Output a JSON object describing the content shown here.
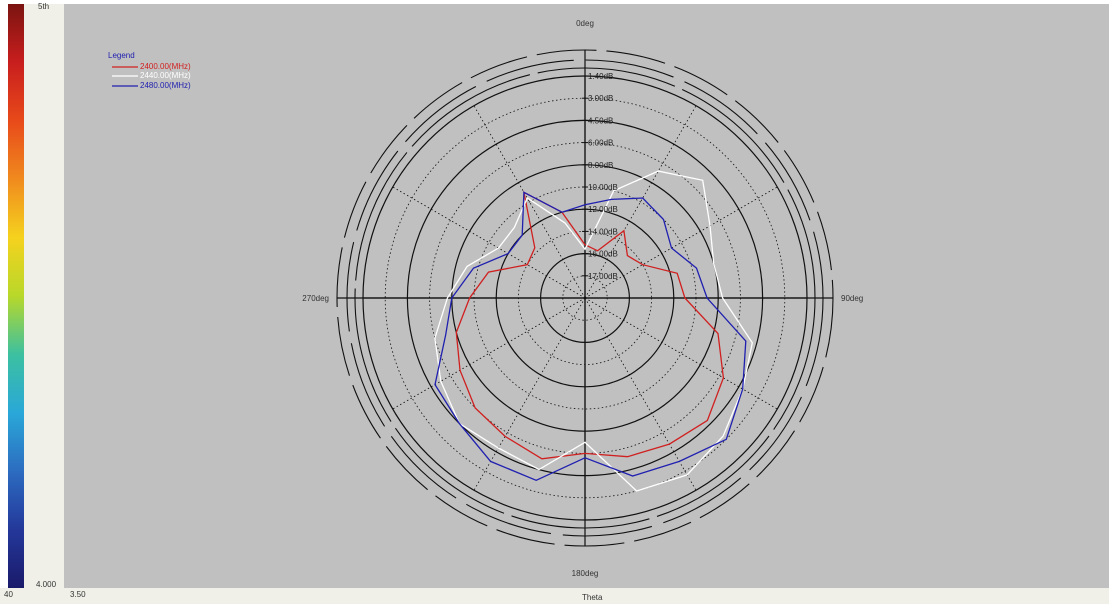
{
  "colorbar": {
    "top_label": "5th",
    "bottom_label": "4.000",
    "bottom_left_label": "40"
  },
  "bottom_bar": {
    "left_value": "3.50",
    "axis_title": "Theta"
  },
  "chart_data": {
    "type": "polar",
    "angle_labels": {
      "top": "0deg",
      "right": "90deg",
      "bottom": "180deg",
      "left": "270deg"
    },
    "radial_tick_labels": [
      "1.40dB",
      "3.00dB",
      "4.50dB",
      "6.00dB",
      "8.00dB",
      "10.00dB",
      "12.00dB",
      "14.00dB",
      "16.00dB",
      "17.00dB"
    ],
    "legend": {
      "title": "Legend",
      "placement": "top-left",
      "entries": [
        {
          "label": "2400.00(MHz)",
          "color": "#d02020"
        },
        {
          "label": "2440.00(MHz)",
          "color": "#ffffff"
        },
        {
          "label": "2480.00(MHz)",
          "color": "#2020b0"
        }
      ]
    },
    "r_range_norm": [
      0,
      1
    ],
    "series": [
      {
        "color": "#d02020",
        "theta_deg": [
          0,
          15,
          30,
          45,
          60,
          75,
          90,
          105,
          120,
          135,
          150,
          165,
          180,
          195,
          210,
          225,
          240,
          255,
          270,
          285,
          300,
          315,
          330,
          345
        ],
        "r_norm": [
          0.24,
          0.22,
          0.35,
          0.27,
          0.3,
          0.43,
          0.45,
          0.62,
          0.72,
          0.78,
          0.76,
          0.74,
          0.7,
          0.75,
          0.72,
          0.7,
          0.65,
          0.6,
          0.52,
          0.45,
          0.3,
          0.32,
          0.55,
          0.4
        ]
      },
      {
        "color": "#ffffff",
        "theta_deg": [
          0,
          15,
          30,
          45,
          60,
          75,
          90,
          105,
          120,
          135,
          150,
          165,
          180,
          195,
          210,
          225,
          240,
          255,
          270,
          285,
          300,
          315,
          330,
          345
        ],
        "r_norm": [
          0.22,
          0.5,
          0.66,
          0.75,
          0.65,
          0.6,
          0.62,
          0.78,
          0.82,
          0.88,
          0.92,
          0.9,
          0.65,
          0.8,
          0.78,
          0.8,
          0.75,
          0.7,
          0.62,
          0.55,
          0.45,
          0.45,
          0.52,
          0.35
        ]
      },
      {
        "color": "#2020b0",
        "theta_deg": [
          0,
          15,
          30,
          45,
          60,
          75,
          90,
          105,
          120,
          135,
          150,
          165,
          180,
          195,
          210,
          225,
          240,
          255,
          270,
          285,
          300,
          315,
          330,
          345
        ],
        "r_norm": [
          0.42,
          0.46,
          0.52,
          0.5,
          0.45,
          0.52,
          0.55,
          0.75,
          0.82,
          0.9,
          0.85,
          0.83,
          0.72,
          0.85,
          0.85,
          0.8,
          0.78,
          0.65,
          0.6,
          0.52,
          0.4,
          0.4,
          0.55,
          0.4
        ]
      }
    ]
  }
}
